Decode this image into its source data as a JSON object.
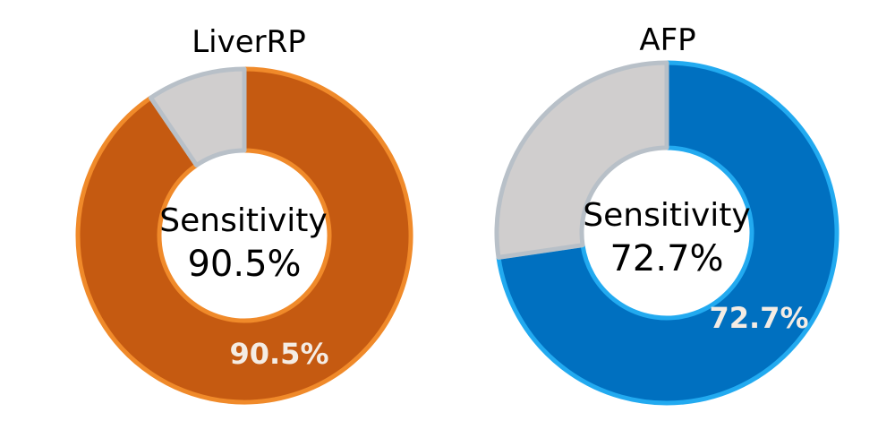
{
  "chart_data": [
    {
      "type": "pie",
      "title": "LiverRP",
      "center_label": "Sensitivity",
      "center_value": "90.5%",
      "slices": [
        {
          "label": "90.5%",
          "value": 90.5,
          "color": "#C55A11",
          "edge_color": "#F08A2A"
        },
        {
          "value": 9.5,
          "color": "#D0CECE",
          "edge_color": "#B8C0C8"
        }
      ]
    },
    {
      "type": "pie",
      "title": "AFP",
      "center_label": "Sensitivity",
      "center_value": "72.7%",
      "slices": [
        {
          "label": "72.7%",
          "value": 72.7,
          "color": "#0070C0",
          "edge_color": "#22AAF0"
        },
        {
          "value": 27.3,
          "color": "#D0CECE",
          "edge_color": "#B8C0C8"
        }
      ]
    }
  ]
}
